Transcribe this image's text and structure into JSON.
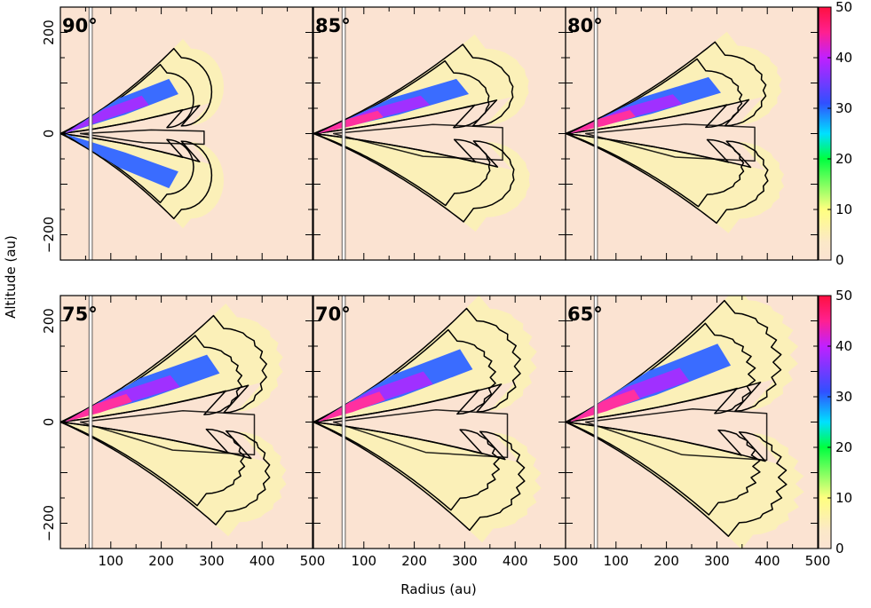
{
  "chart_data": {
    "type": "heatmap",
    "xlabel": "Radius (au)",
    "ylabel": "Altitude (au)",
    "xlim": [
      0,
      500
    ],
    "ylim": [
      -250,
      250
    ],
    "x_ticks": [
      "100",
      "200",
      "300",
      "400",
      "500"
    ],
    "y_ticks": [
      "200",
      "0",
      "−200"
    ],
    "colorbar": {
      "range": [
        0,
        50
      ],
      "ticks": [
        "50",
        "40",
        "30",
        "20",
        "10",
        "0"
      ],
      "colors": [
        "#fbe3d2",
        "#ffff80",
        "#00ff40",
        "#00e0ff",
        "#3050ff",
        "#c020ff",
        "#ff2080",
        "#ff1040"
      ]
    },
    "vertical_line_x": 60,
    "panels": [
      {
        "label": "90°",
        "inclination": 90,
        "r_max": 300,
        "h_max": 150,
        "asym": 0.0,
        "rough": 0.0
      },
      {
        "label": "85°",
        "inclination": 85,
        "r_max": 395,
        "h_max": 150,
        "asym": 0.05,
        "rough": 0.02
      },
      {
        "label": "80°",
        "inclination": 80,
        "r_max": 395,
        "h_max": 155,
        "asym": 0.1,
        "rough": 0.04
      },
      {
        "label": "75°",
        "inclination": 75,
        "r_max": 405,
        "h_max": 185,
        "asym": 0.15,
        "rough": 0.06
      },
      {
        "label": "70°",
        "inclination": 70,
        "r_max": 405,
        "h_max": 200,
        "asym": 0.2,
        "rough": 0.08
      },
      {
        "label": "65°",
        "inclination": 65,
        "r_max": 420,
        "h_max": 215,
        "asym": 0.25,
        "rough": 0.1
      }
    ]
  }
}
